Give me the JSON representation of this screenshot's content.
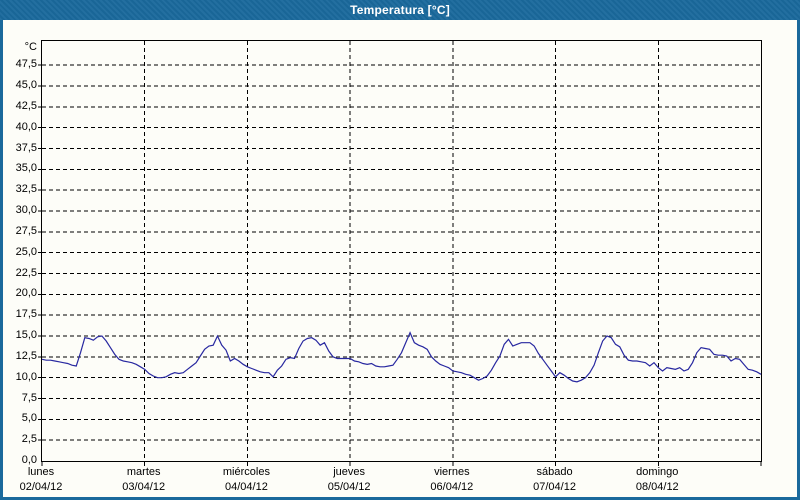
{
  "window": {
    "title": "Temperatura [°C]",
    "title_bar_color": "#1a699c",
    "frame_color": "#1a699c",
    "background_color": "#fdfdf8",
    "line_color": "#2828a0",
    "grid_color": "#000000"
  },
  "chart_data": {
    "type": "line",
    "title": "Temperatura [°C]",
    "grid": {
      "style": "dashed",
      "horizontal_step_c": 2.5,
      "vertical_lines": "one per day boundary"
    },
    "legend": "none",
    "y_axis": {
      "unit": "°C",
      "min": 0,
      "axis_top_value": 50.4,
      "tick_step": 2.5,
      "tick_labels": [
        "47,5",
        "45,0",
        "42,5",
        "40,0",
        "37,5",
        "35,0",
        "32,5",
        "30,0",
        "27,5",
        "25,0",
        "22,5",
        "20,0",
        "17,5",
        "15,0",
        "12,5",
        "10,0",
        "7,5",
        "5,0",
        "2,5",
        "0,0"
      ]
    },
    "x_axis": {
      "span_hours": 168,
      "days": [
        {
          "name": "lunes",
          "date": "02/04/12"
        },
        {
          "name": "martes",
          "date": "03/04/12"
        },
        {
          "name": "miércoles",
          "date": "04/04/12"
        },
        {
          "name": "jueves",
          "date": "05/04/12"
        },
        {
          "name": "viernes",
          "date": "06/04/12"
        },
        {
          "name": "sábado",
          "date": "07/04/12"
        },
        {
          "name": "domingo",
          "date": "08/04/12"
        }
      ]
    },
    "ylim": [
      0,
      50.4
    ],
    "series": [
      {
        "name": "Temperatura",
        "color": "#2828a0",
        "sample_interval_hours": 1,
        "values_by_hour": [
          12.2,
          12.1,
          12.1,
          12.0,
          11.9,
          11.8,
          11.7,
          11.5,
          11.4,
          13.0,
          14.8,
          14.7,
          14.5,
          14.9,
          15.0,
          14.4,
          13.6,
          12.8,
          12.2,
          12.0,
          11.9,
          11.8,
          11.6,
          11.3,
          11.0,
          10.5,
          10.2,
          10.0,
          10.0,
          10.1,
          10.4,
          10.6,
          10.5,
          10.6,
          11.0,
          11.4,
          11.8,
          12.6,
          13.4,
          13.8,
          13.9,
          15.0,
          13.9,
          13.3,
          12.0,
          12.3,
          12.0,
          11.6,
          11.3,
          11.1,
          10.9,
          10.7,
          10.6,
          10.6,
          10.1,
          10.9,
          11.4,
          12.2,
          12.4,
          12.3,
          13.5,
          14.4,
          14.7,
          14.8,
          14.5,
          13.9,
          14.2,
          13.2,
          12.5,
          12.3,
          12.3,
          12.3,
          12.3,
          12.0,
          11.9,
          11.7,
          11.6,
          11.7,
          11.4,
          11.3,
          11.3,
          11.4,
          11.5,
          12.2,
          13.0,
          14.2,
          15.4,
          14.2,
          13.9,
          13.7,
          13.4,
          12.5,
          12.0,
          11.6,
          11.4,
          11.2,
          10.8,
          10.7,
          10.6,
          10.4,
          10.3,
          10.0,
          9.7,
          9.9,
          10.2,
          10.9,
          11.8,
          12.6,
          14.0,
          14.6,
          13.8,
          14.0,
          14.2,
          14.2,
          14.2,
          13.8,
          12.9,
          12.2,
          11.5,
          10.8,
          10.1,
          10.6,
          10.3,
          9.9,
          9.6,
          9.5,
          9.7,
          10.0,
          10.6,
          11.5,
          13.0,
          14.4,
          15.0,
          14.8,
          14.0,
          13.7,
          12.7,
          12.1,
          12.0,
          12.0,
          11.9,
          11.8,
          11.4,
          11.8,
          11.2,
          10.8,
          11.2,
          11.1,
          11.0,
          11.2,
          10.8,
          11.0,
          11.8,
          13.0,
          13.6,
          13.5,
          13.4,
          12.8,
          12.7,
          12.7,
          12.6,
          12.0,
          12.3,
          12.2,
          11.6,
          11.0,
          10.9,
          10.7,
          10.4
        ]
      }
    ]
  }
}
